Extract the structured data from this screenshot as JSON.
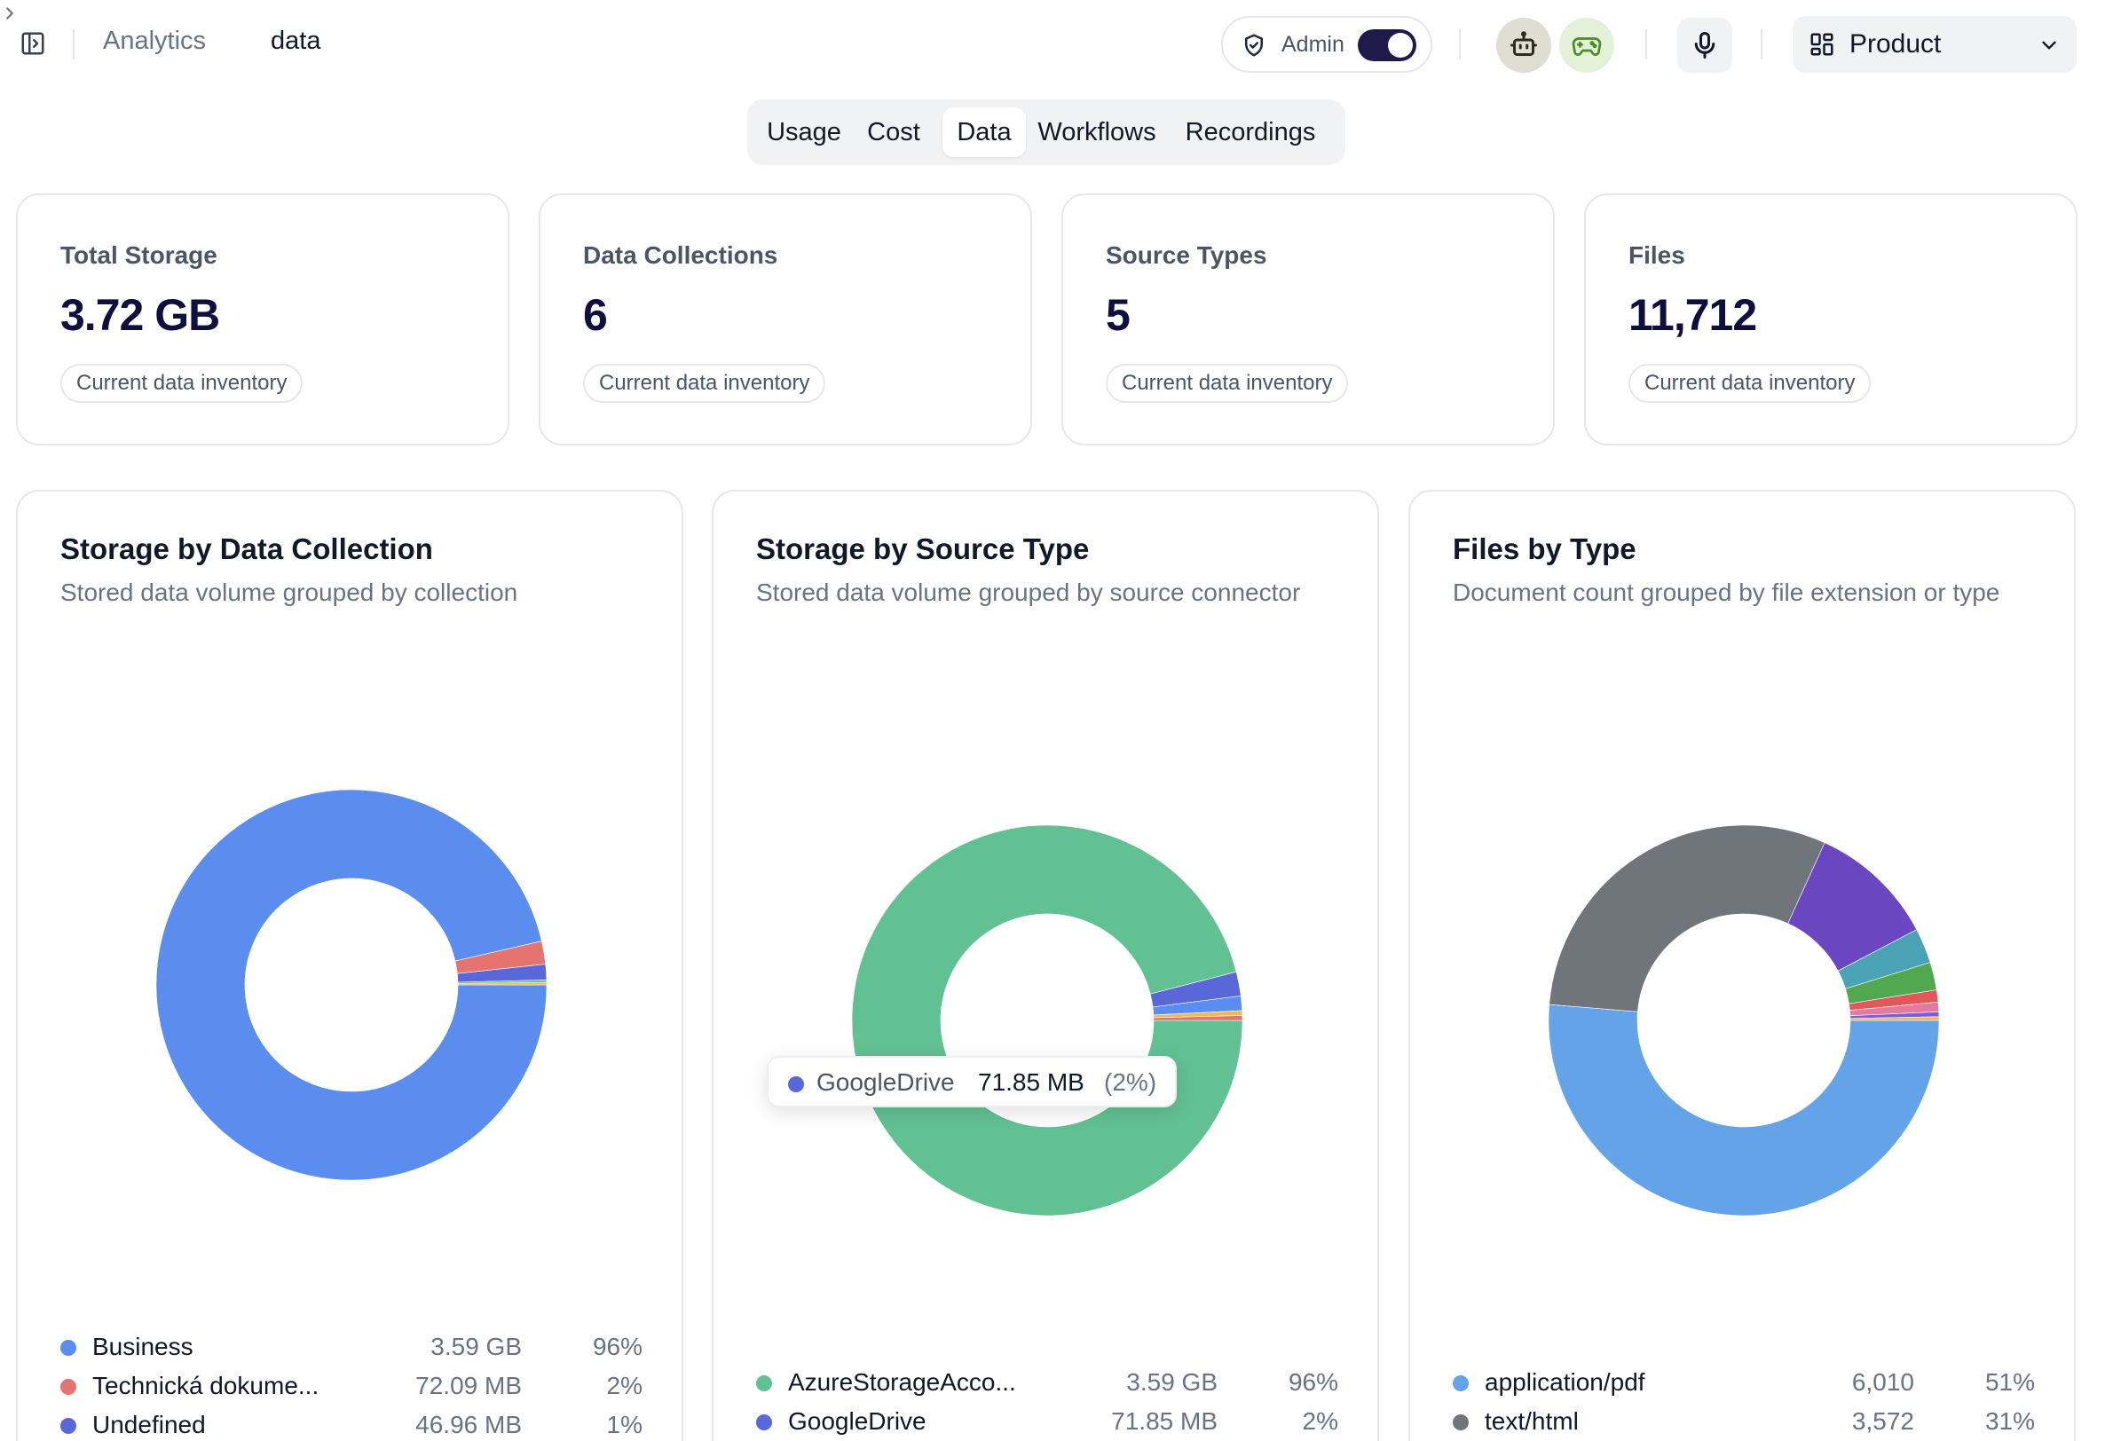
{
  "breadcrumb": {
    "parent": "Analytics",
    "current": "data"
  },
  "header": {
    "admin_label": "Admin",
    "admin_enabled": true,
    "product_select": "Product",
    "icons": [
      "sidebar-toggle-icon",
      "shield-icon",
      "robot-icon",
      "gamepad-icon",
      "microphone-icon",
      "grid-icon",
      "chevron-down-icon"
    ]
  },
  "tabs": [
    {
      "label": "Usage",
      "active": false
    },
    {
      "label": "Cost",
      "active": false
    },
    {
      "label": "Data",
      "active": true
    },
    {
      "label": "Workflows",
      "active": false
    },
    {
      "label": "Recordings",
      "active": false
    }
  ],
  "stats": [
    {
      "title": "Total Storage",
      "value": "3.72 GB",
      "badge": "Current data inventory"
    },
    {
      "title": "Data Collections",
      "value": "6",
      "badge": "Current data inventory"
    },
    {
      "title": "Source Types",
      "value": "5",
      "badge": "Current data inventory"
    },
    {
      "title": "Files",
      "value": "11,712",
      "badge": "Current data inventory"
    }
  ],
  "charts": [
    {
      "title": "Storage by Data Collection",
      "description": "Stored data volume grouped by collection",
      "legend": [
        {
          "label": "Business",
          "value": "3.59 GB",
          "pct": "96%",
          "color": "#5b8def"
        },
        {
          "label": "Technická dokume...",
          "value": "72.09 MB",
          "pct": "2%",
          "color": "#e5736f"
        },
        {
          "label": "Undefined",
          "value": "46.96 MB",
          "pct": "1%",
          "color": "#5a67d8"
        }
      ]
    },
    {
      "title": "Storage by Source Type",
      "description": "Stored data volume grouped by source connector",
      "legend": [
        {
          "label": "AzureStorageAcco...",
          "value": "3.59 GB",
          "pct": "96%",
          "color": "#62c192"
        },
        {
          "label": "GoogleDrive",
          "value": "71.85 MB",
          "pct": "2%",
          "color": "#5a67d8"
        }
      ],
      "tooltip": {
        "label": "GoogleDrive",
        "value": "71.85 MB",
        "pct": "(2%)",
        "color": "#5a67d8"
      }
    },
    {
      "title": "Files by Type",
      "description": "Document count grouped by file extension or type",
      "legend": [
        {
          "label": "application/pdf",
          "value": "6,010",
          "pct": "51%",
          "color": "#64a3e8"
        },
        {
          "label": "text/html",
          "value": "3,572",
          "pct": "31%",
          "color": "#70757c"
        }
      ]
    }
  ],
  "chart_data": [
    {
      "type": "pie",
      "title": "Storage by Data Collection",
      "series": [
        {
          "name": "Business",
          "value": 96.4,
          "color": "#5b8def"
        },
        {
          "name": "Technická dokume...",
          "value": 1.9,
          "color": "#e5736f"
        },
        {
          "name": "Undefined",
          "value": 1.3,
          "color": "#5a67d8"
        },
        {
          "value": 0.2,
          "color": "#62c192"
        },
        {
          "value": 0.2,
          "color": "#f2b84b"
        }
      ]
    },
    {
      "type": "pie",
      "title": "Storage by Source Type",
      "series": [
        {
          "name": "AzureStorageAcco...",
          "value": 96.0,
          "color": "#62c192"
        },
        {
          "name": "GoogleDrive",
          "value": 2.0,
          "color": "#5a67d8"
        },
        {
          "value": 1.2,
          "color": "#5b8def"
        },
        {
          "value": 0.4,
          "color": "#f2b84b"
        },
        {
          "value": 0.4,
          "color": "#e5736f"
        }
      ]
    },
    {
      "type": "pie",
      "title": "Files by Type",
      "series": [
        {
          "name": "application/pdf",
          "value": 51.3,
          "color": "#64a3e8"
        },
        {
          "name": "text/html",
          "value": 30.5,
          "color": "#70757c"
        },
        {
          "value": 10.5,
          "color": "#6b46c1"
        },
        {
          "value": 2.9,
          "color": "#4aa3b5"
        },
        {
          "value": 2.3,
          "color": "#52a84f"
        },
        {
          "value": 1.0,
          "color": "#e2575a"
        },
        {
          "value": 0.8,
          "color": "#e57aa0"
        },
        {
          "value": 0.4,
          "color": "#7a5ce0"
        },
        {
          "value": 0.3,
          "color": "#f2b84b"
        }
      ]
    }
  ]
}
